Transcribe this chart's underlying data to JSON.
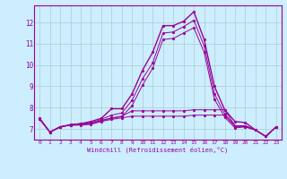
{
  "xlabel": "Windchill (Refroidissement éolien,°C)",
  "background_color": "#cceeff",
  "line_color": "#990099",
  "grid_color": "#aacccc",
  "xlim": [
    -0.5,
    23.5
  ],
  "ylim": [
    6.5,
    12.8
  ],
  "xticks": [
    0,
    1,
    2,
    3,
    4,
    5,
    6,
    7,
    8,
    9,
    10,
    11,
    12,
    13,
    14,
    15,
    16,
    17,
    18,
    19,
    20,
    21,
    22,
    23
  ],
  "yticks": [
    7,
    8,
    9,
    10,
    11,
    12
  ],
  "lines": [
    [
      7.5,
      6.85,
      7.1,
      7.2,
      7.25,
      7.35,
      7.5,
      7.95,
      7.95,
      8.65,
      9.75,
      10.6,
      11.85,
      11.85,
      12.05,
      12.5,
      11.2,
      9.0,
      7.9,
      7.35,
      7.3,
      6.95,
      6.65,
      7.1
    ],
    [
      7.5,
      6.85,
      7.1,
      7.2,
      7.25,
      7.3,
      7.45,
      7.65,
      7.75,
      8.35,
      9.35,
      10.1,
      11.5,
      11.55,
      11.8,
      12.1,
      10.9,
      8.65,
      7.7,
      7.15,
      7.15,
      6.95,
      6.65,
      7.1
    ],
    [
      7.45,
      6.85,
      7.1,
      7.18,
      7.2,
      7.25,
      7.38,
      7.5,
      7.58,
      8.1,
      9.05,
      9.85,
      11.2,
      11.25,
      11.5,
      11.75,
      10.6,
      8.4,
      7.55,
      7.05,
      7.1,
      6.95,
      6.65,
      7.1
    ],
    [
      7.48,
      6.85,
      7.1,
      7.18,
      7.2,
      7.25,
      7.4,
      7.52,
      7.6,
      7.85,
      7.85,
      7.85,
      7.85,
      7.85,
      7.85,
      7.9,
      7.9,
      7.9,
      7.9,
      7.15,
      7.15,
      6.95,
      6.65,
      7.1
    ],
    [
      7.48,
      6.85,
      7.1,
      7.18,
      7.18,
      7.22,
      7.35,
      7.45,
      7.52,
      7.6,
      7.6,
      7.6,
      7.6,
      7.6,
      7.6,
      7.65,
      7.65,
      7.65,
      7.65,
      7.12,
      7.1,
      6.95,
      6.65,
      7.1
    ]
  ]
}
